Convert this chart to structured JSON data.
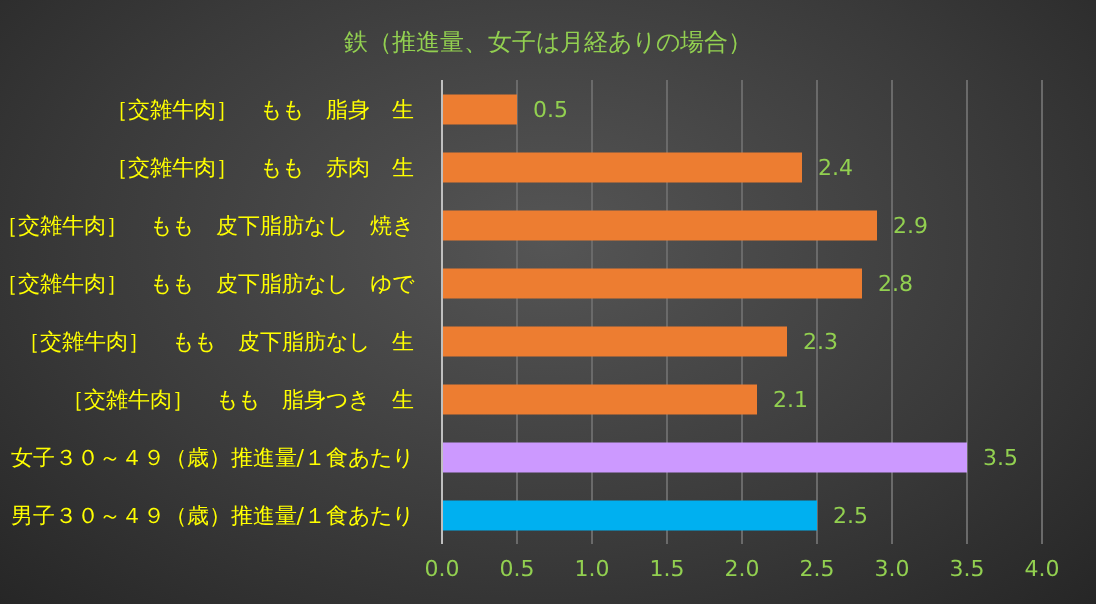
{
  "chart_data": {
    "type": "bar",
    "orientation": "horizontal",
    "title": "鉄（推進量、女子は月経ありの場合）",
    "categories": [
      "［交雑牛肉］　もも　脂身　生",
      "［交雑牛肉］　もも　赤肉　生",
      "［交雑牛肉］　もも　皮下脂肪なし　焼き",
      "［交雑牛肉］　もも　皮下脂肪なし　ゆで",
      "［交雑牛肉］　もも　皮下脂肪なし　生",
      "［交雑牛肉］　もも　脂身つき　生",
      "女子３０～４９（歳）推進量/１食あたり",
      "男子３０～４９（歳）推進量/１食あたり"
    ],
    "values": [
      0.5,
      2.4,
      2.9,
      2.8,
      2.3,
      2.1,
      3.5,
      2.5
    ],
    "colors": [
      "#ed7d31",
      "#ed7d31",
      "#ed7d31",
      "#ed7d31",
      "#ed7d31",
      "#ed7d31",
      "#cc99ff",
      "#00b0f0"
    ],
    "xlim": [
      0,
      4
    ],
    "xticks": [
      {
        "value": 0,
        "label": "0.0"
      },
      {
        "value": 0.5,
        "label": "0.5"
      },
      {
        "value": 1,
        "label": "1.0"
      },
      {
        "value": 1.5,
        "label": "1.5"
      },
      {
        "value": 2,
        "label": "2.0"
      },
      {
        "value": 2.5,
        "label": "2.5"
      },
      {
        "value": 3,
        "label": "3.0"
      },
      {
        "value": 3.5,
        "label": "3.5"
      },
      {
        "value": 4,
        "label": "4.0"
      }
    ],
    "grid": "x",
    "data_labels": true
  }
}
